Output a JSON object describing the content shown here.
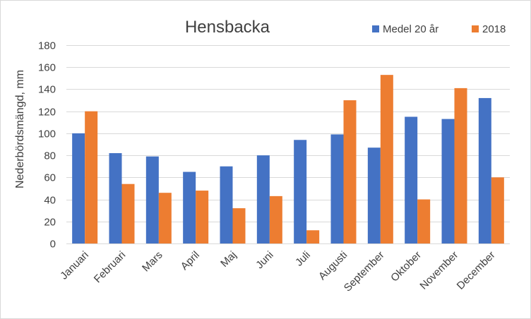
{
  "chart_data": {
    "type": "bar",
    "title": "Hensbacka",
    "ylabel": "Nederbördsmängd, mm",
    "xlabel": "",
    "ylim": [
      0,
      180
    ],
    "yticks": [
      0,
      20,
      40,
      60,
      80,
      100,
      120,
      140,
      160,
      180
    ],
    "grid": true,
    "legend_position": "top-right",
    "categories": [
      "Januari",
      "Februari",
      "Mars",
      "April",
      "Maj",
      "Juni",
      "Juli",
      "Augusti",
      "September",
      "Oktober",
      "November",
      "December"
    ],
    "series": [
      {
        "name": "Medel 20 år",
        "color": "#4472c4",
        "values": [
          100,
          82,
          79,
          65,
          70,
          80,
          94,
          99,
          87,
          115,
          113,
          132
        ]
      },
      {
        "name": "2018",
        "color": "#ed7d31",
        "values": [
          120,
          54,
          46,
          48,
          32,
          43,
          12,
          130,
          153,
          40,
          141,
          60
        ]
      }
    ]
  }
}
